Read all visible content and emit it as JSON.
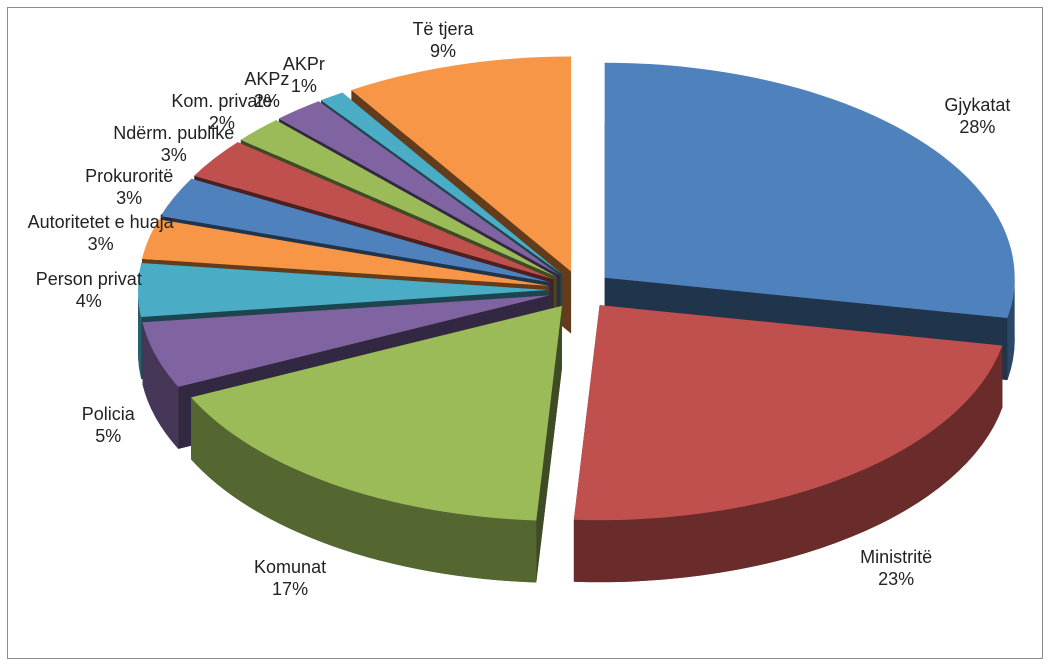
{
  "chart_data": {
    "type": "pie",
    "categories": [
      "Gjykatat",
      "Ministritë",
      "Komunat",
      "Policia",
      "Person privat",
      "Autoritetet e huaja",
      "Prokuroritë",
      "Ndërm. publike",
      "Kom. private",
      "AKPz",
      "AKPr",
      "Të tjera"
    ],
    "values": [
      28,
      23,
      17,
      5,
      4,
      3,
      3,
      3,
      2,
      2,
      1,
      9
    ],
    "value_labels": [
      "28%",
      "23%",
      "17%",
      "5%",
      "4%",
      "3%",
      "3%",
      "3%",
      "2%",
      "2%",
      "1%",
      "9%"
    ],
    "colors": [
      "#4f81bd",
      "#c0504d",
      "#9bbb59",
      "#8064a2",
      "#4bacc6",
      "#f79646",
      "#4f81bd",
      "#c0504d",
      "#9bbb59",
      "#8064a2",
      "#4bacc6",
      "#f79646"
    ]
  }
}
